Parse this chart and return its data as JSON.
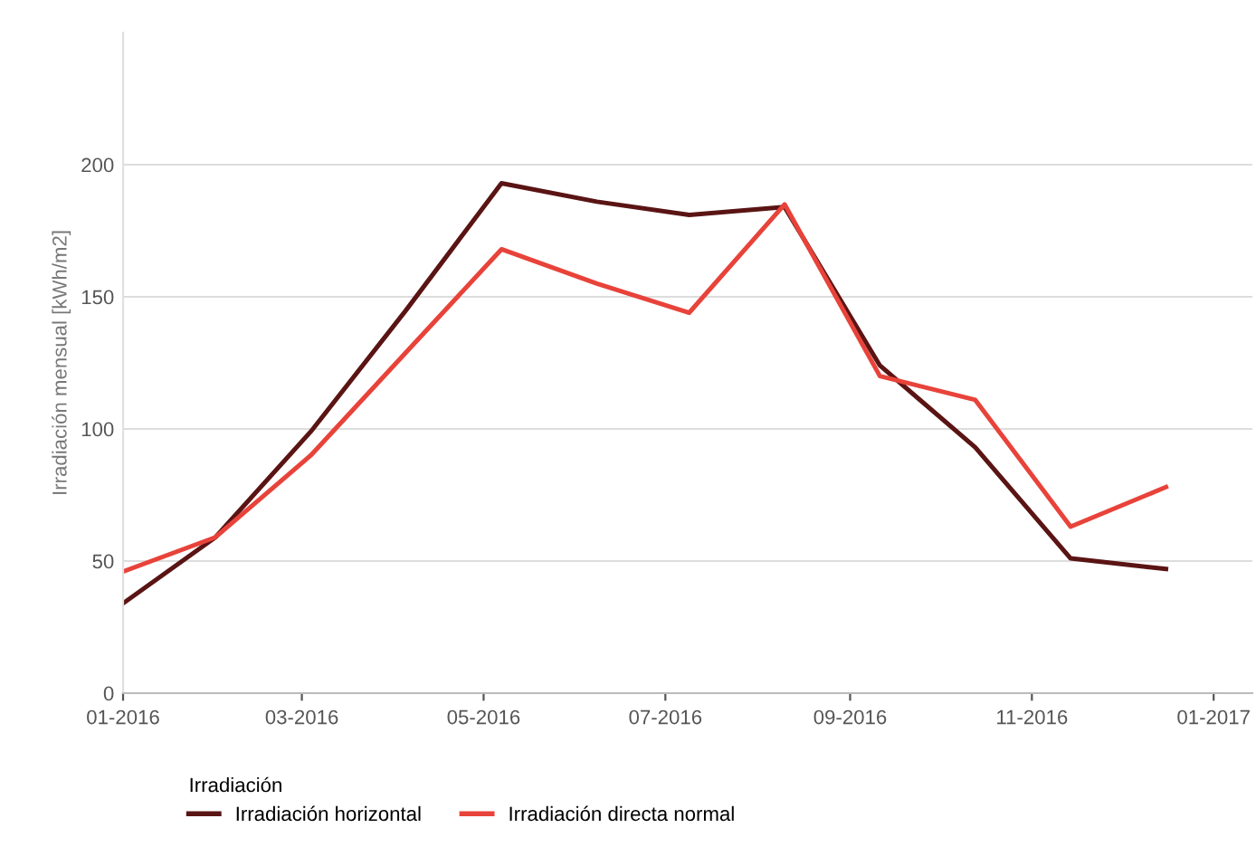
{
  "chart_data": {
    "type": "line",
    "ylabel": "Irradiación mensual [kWh/m2]",
    "legend_title": "Irradiación",
    "x": [
      "2016-01-01",
      "2016-02-01",
      "2016-03-04",
      "2016-04-05",
      "2016-05-07",
      "2016-06-08",
      "2016-07-09",
      "2016-08-10",
      "2016-09-11",
      "2016-10-13",
      "2016-11-14",
      "2016-12-16"
    ],
    "series": [
      {
        "name": "Irradiación horizontal",
        "color": "#5a1414",
        "values": [
          34,
          59,
          99,
          145,
          193,
          186,
          181,
          184,
          124,
          93,
          51,
          47
        ]
      },
      {
        "name": "Irradiación directa normal",
        "color": "#e8433a",
        "values": [
          46,
          59,
          90,
          129,
          168,
          155,
          144,
          185,
          120,
          111,
          63,
          78
        ]
      }
    ],
    "xlim": [
      "2016-01-01",
      "2017-01-14"
    ],
    "xticks": [
      {
        "value": "2016-01-01",
        "label": "01-2016"
      },
      {
        "value": "2016-03-01",
        "label": "03-2016"
      },
      {
        "value": "2016-05-01",
        "label": "05-2016"
      },
      {
        "value": "2016-07-01",
        "label": "07-2016"
      },
      {
        "value": "2016-09-01",
        "label": "09-2016"
      },
      {
        "value": "2016-11-01",
        "label": "11-2016"
      },
      {
        "value": "2017-01-01",
        "label": "01-2017"
      }
    ],
    "ylim": [
      0,
      250
    ],
    "yticks": [
      0,
      50,
      100,
      150,
      200
    ],
    "grid": "y",
    "legend": "bottom",
    "marker": "none",
    "line_style": "solid"
  }
}
